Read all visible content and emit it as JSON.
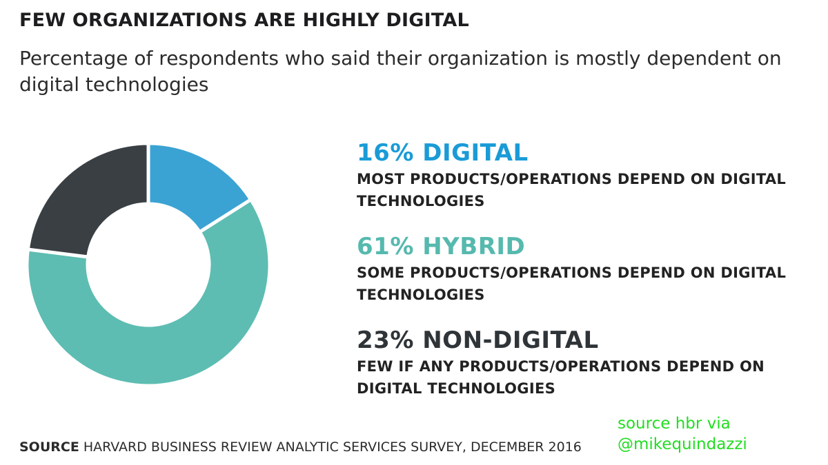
{
  "title": "FEW ORGANIZATIONS ARE HIGHLY DIGITAL",
  "subtitle": "Percentage of respondents who said their organization is mostly dependent on digital technologies",
  "chart_data": {
    "type": "pie",
    "variant": "donut",
    "title": "FEW ORGANIZATIONS ARE HIGHLY DIGITAL",
    "subtitle": "Percentage of respondents who said their organization is mostly dependent on digital technologies",
    "legend_position": "right",
    "slices": [
      {
        "label": "DIGITAL",
        "value": 16,
        "header": "16% DIGITAL",
        "description": "MOST PRODUCTS/OPERATIONS DEPEND ON DIGITAL TECHNOLOGIES",
        "color": "#3ba3d3"
      },
      {
        "label": "HYBRID",
        "value": 61,
        "header": "61% HYBRID",
        "description": "SOME PRODUCTS/OPERATIONS DEPEND ON DIGITAL TECHNOLOGIES",
        "color": "#5dbdb2"
      },
      {
        "label": "NON-DIGITAL",
        "value": 23,
        "header": "23% NON-DIGITAL",
        "description": "FEW IF ANY PRODUCTS/OPERATIONS DEPEND ON DIGITAL TECHNOLOGIES",
        "color": "#3a3f43"
      }
    ]
  },
  "source": {
    "label": "SOURCE",
    "text": "HARVARD BUSINESS REVIEW ANALYTIC SERVICES SURVEY, DECEMBER 2016"
  },
  "credit": {
    "line1": "source hbr via",
    "line2": "@mikequindazzi"
  }
}
